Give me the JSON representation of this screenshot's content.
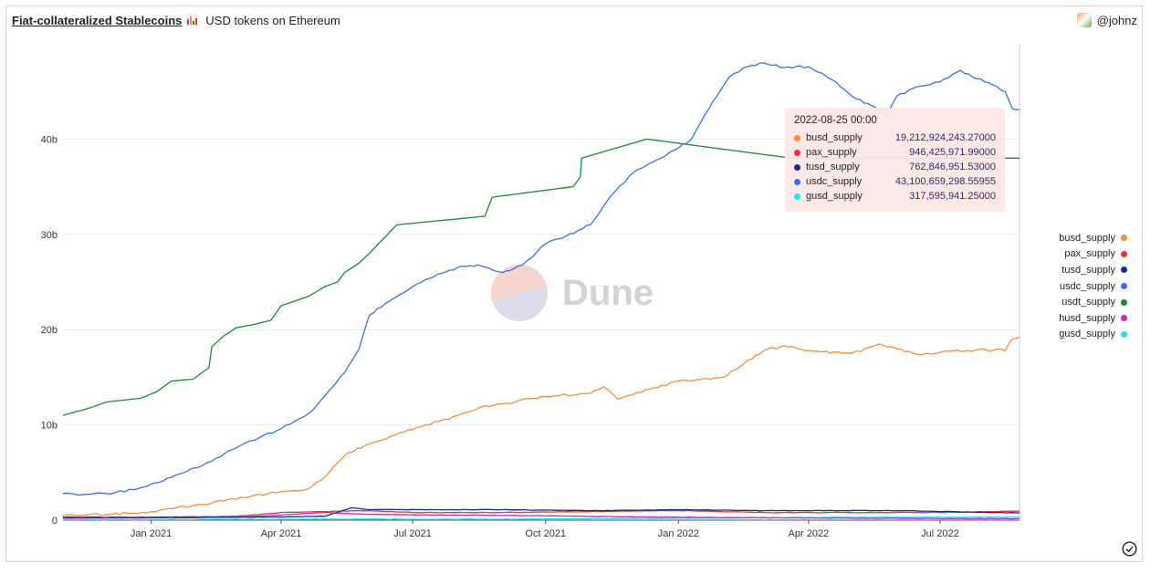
{
  "header": {
    "title": "Fiat-collateralized Stablecoins",
    "subtitle": "USD tokens on Ethereum",
    "user": "@johnz"
  },
  "watermark": {
    "text": "Dune"
  },
  "tooltip": {
    "date": "2022-08-25 00:00",
    "rows": [
      {
        "name": "busd_supply",
        "value": "19,212,924,243.27000",
        "color": "#f28e3d"
      },
      {
        "name": "pax_supply",
        "value": "946,425,971.99000",
        "color": "#e8323c"
      },
      {
        "name": "tusd_supply",
        "value": "762,846,951.53000",
        "color": "#1c2a8a"
      },
      {
        "name": "usdc_supply",
        "value": "43,100,659,298.55955",
        "color": "#3d6ee8"
      },
      {
        "name": "gusd_supply",
        "value": "317,595,941.25000",
        "color": "#1ee6f0"
      }
    ]
  },
  "chart_data": {
    "type": "line",
    "x_range": [
      "2020-11-01",
      "2022-08-25"
    ],
    "ylim": [
      0,
      50
    ],
    "y_ticks": [
      0,
      10,
      20,
      30,
      40
    ],
    "y_tick_labels": [
      "0",
      "10b",
      "20b",
      "30b",
      "40b"
    ],
    "x_ticks": [
      "2021-01-01",
      "2021-04-01",
      "2021-07-01",
      "2021-10-01",
      "2022-01-01",
      "2022-04-01",
      "2022-07-01"
    ],
    "x_tick_labels": [
      "Jan 2021",
      "Apr 2021",
      "Jul 2021",
      "Oct 2021",
      "Jan 2022",
      "Apr 2022",
      "Jul 2022"
    ],
    "legend_position": "right",
    "crosshair_x": "2022-08-25",
    "series": [
      {
        "name": "busd_supply",
        "color": "#f28e3d",
        "points": [
          [
            "2020-11-01",
            0.5
          ],
          [
            "2020-12-01",
            0.6
          ],
          [
            "2021-01-01",
            0.9
          ],
          [
            "2021-02-01",
            1.6
          ],
          [
            "2021-03-01",
            2.2
          ],
          [
            "2021-04-01",
            3.0
          ],
          [
            "2021-04-20",
            3.3
          ],
          [
            "2021-05-01",
            4.5
          ],
          [
            "2021-05-15",
            6.8
          ],
          [
            "2021-06-01",
            8.0
          ],
          [
            "2021-07-01",
            9.5
          ],
          [
            "2021-08-01",
            11.0
          ],
          [
            "2021-08-20",
            12.0
          ],
          [
            "2021-09-01",
            12.2
          ],
          [
            "2021-10-01",
            13.0
          ],
          [
            "2021-11-01",
            13.3
          ],
          [
            "2021-11-10",
            14.0
          ],
          [
            "2021-11-20",
            12.7
          ],
          [
            "2021-12-01",
            13.2
          ],
          [
            "2021-12-15",
            13.9
          ],
          [
            "2022-01-01",
            14.6
          ],
          [
            "2022-02-01",
            15.0
          ],
          [
            "2022-02-15",
            16.4
          ],
          [
            "2022-03-01",
            17.8
          ],
          [
            "2022-03-15",
            18.3
          ],
          [
            "2022-04-01",
            17.8
          ],
          [
            "2022-05-01",
            17.5
          ],
          [
            "2022-05-20",
            18.5
          ],
          [
            "2022-06-01",
            18.0
          ],
          [
            "2022-06-15",
            17.4
          ],
          [
            "2022-07-01",
            17.6
          ],
          [
            "2022-08-01",
            17.9
          ],
          [
            "2022-08-15",
            17.8
          ],
          [
            "2022-08-20",
            19.0
          ],
          [
            "2022-08-25",
            19.21
          ]
        ]
      },
      {
        "name": "pax_supply",
        "color": "#e8323c",
        "points": [
          [
            "2020-11-01",
            0.3
          ],
          [
            "2021-01-01",
            0.3
          ],
          [
            "2021-03-01",
            0.4
          ],
          [
            "2021-04-01",
            0.8
          ],
          [
            "2021-05-01",
            0.9
          ],
          [
            "2021-06-01",
            1.0
          ],
          [
            "2021-07-01",
            0.8
          ],
          [
            "2021-09-01",
            0.8
          ],
          [
            "2021-11-01",
            0.9
          ],
          [
            "2022-01-01",
            1.0
          ],
          [
            "2022-03-01",
            0.8
          ],
          [
            "2022-05-01",
            0.8
          ],
          [
            "2022-07-01",
            0.8
          ],
          [
            "2022-08-25",
            0.95
          ]
        ]
      },
      {
        "name": "tusd_supply",
        "color": "#1c2a8a",
        "points": [
          [
            "2020-11-01",
            0.3
          ],
          [
            "2021-01-01",
            0.3
          ],
          [
            "2021-03-01",
            0.3
          ],
          [
            "2021-05-01",
            0.4
          ],
          [
            "2021-05-20",
            1.3
          ],
          [
            "2021-06-01",
            1.1
          ],
          [
            "2021-09-01",
            1.1
          ],
          [
            "2021-11-01",
            1.0
          ],
          [
            "2022-01-01",
            1.1
          ],
          [
            "2022-03-01",
            1.0
          ],
          [
            "2022-06-01",
            1.0
          ],
          [
            "2022-08-25",
            0.76
          ]
        ]
      },
      {
        "name": "usdc_supply",
        "color": "#3d6ee8",
        "points": [
          [
            "2020-11-01",
            2.8
          ],
          [
            "2020-11-15",
            2.7
          ],
          [
            "2020-12-01",
            2.8
          ],
          [
            "2020-12-20",
            3.2
          ],
          [
            "2021-01-01",
            3.8
          ],
          [
            "2021-01-15",
            4.5
          ],
          [
            "2021-02-01",
            5.5
          ],
          [
            "2021-02-15",
            6.5
          ],
          [
            "2021-03-01",
            7.6
          ],
          [
            "2021-04-01",
            9.6
          ],
          [
            "2021-04-20",
            11.2
          ],
          [
            "2021-05-01",
            13.0
          ],
          [
            "2021-05-15",
            15.5
          ],
          [
            "2021-05-25",
            18.0
          ],
          [
            "2021-06-01",
            21.5
          ],
          [
            "2021-06-15",
            23.0
          ],
          [
            "2021-07-01",
            24.5
          ],
          [
            "2021-07-15",
            25.5
          ],
          [
            "2021-08-01",
            26.5
          ],
          [
            "2021-08-15",
            26.8
          ],
          [
            "2021-09-01",
            26.0
          ],
          [
            "2021-09-15",
            26.8
          ],
          [
            "2021-10-01",
            29.0
          ],
          [
            "2021-10-15",
            29.8
          ],
          [
            "2021-11-01",
            31.0
          ],
          [
            "2021-11-15",
            34.0
          ],
          [
            "2021-12-01",
            36.5
          ],
          [
            "2021-12-20",
            38.0
          ],
          [
            "2022-01-10",
            40.0
          ],
          [
            "2022-01-25",
            44.0
          ],
          [
            "2022-02-05",
            46.5
          ],
          [
            "2022-02-15",
            47.5
          ],
          [
            "2022-03-01",
            48.0
          ],
          [
            "2022-03-15",
            47.5
          ],
          [
            "2022-04-01",
            47.6
          ],
          [
            "2022-04-20",
            46.0
          ],
          [
            "2022-05-01",
            44.5
          ],
          [
            "2022-05-15",
            43.5
          ],
          [
            "2022-05-25",
            42.5
          ],
          [
            "2022-06-01",
            44.5
          ],
          [
            "2022-06-15",
            45.5
          ],
          [
            "2022-07-01",
            46.0
          ],
          [
            "2022-07-15",
            47.2
          ],
          [
            "2022-08-01",
            46.0
          ],
          [
            "2022-08-15",
            45.0
          ],
          [
            "2022-08-20",
            43.2
          ],
          [
            "2022-08-25",
            43.1
          ]
        ]
      },
      {
        "name": "usdt_supply",
        "color": "#1a8a3a",
        "points": [
          [
            "2020-11-01",
            11.0
          ],
          [
            "2020-11-20",
            11.8
          ],
          [
            "2020-12-01",
            12.4
          ],
          [
            "2020-12-25",
            12.8
          ],
          [
            "2021-01-05",
            13.5
          ],
          [
            "2021-01-15",
            14.6
          ],
          [
            "2021-01-30",
            14.8
          ],
          [
            "2021-02-10",
            16.0
          ],
          [
            "2021-02-12",
            18.2
          ],
          [
            "2021-02-20",
            19.3
          ],
          [
            "2021-03-01",
            20.2
          ],
          [
            "2021-03-15",
            20.6
          ],
          [
            "2021-03-25",
            21.0
          ],
          [
            "2021-04-01",
            22.5
          ],
          [
            "2021-04-20",
            23.5
          ],
          [
            "2021-05-01",
            24.5
          ],
          [
            "2021-05-10",
            25.0
          ],
          [
            "2021-05-15",
            26.0
          ],
          [
            "2021-05-25",
            27.0
          ],
          [
            "2021-06-01",
            28.0
          ],
          [
            "2021-06-20",
            31.0
          ],
          [
            "2021-08-20",
            31.9
          ],
          [
            "2021-08-25",
            33.9
          ],
          [
            "2021-10-20",
            35.0
          ],
          [
            "2021-10-25",
            36.0
          ],
          [
            "2021-10-26",
            38.0
          ],
          [
            "2021-12-10",
            40.0
          ],
          [
            "2022-03-20",
            38.0
          ],
          [
            "2022-08-25",
            38.0
          ]
        ]
      },
      {
        "name": "husd_supply",
        "color": "#d020d8",
        "points": [
          [
            "2020-11-01",
            0.2
          ],
          [
            "2021-03-01",
            0.3
          ],
          [
            "2021-05-01",
            0.8
          ],
          [
            "2021-06-01",
            0.6
          ],
          [
            "2021-09-01",
            0.5
          ],
          [
            "2022-01-01",
            0.3
          ],
          [
            "2022-05-01",
            0.2
          ],
          [
            "2022-08-25",
            0.15
          ]
        ]
      },
      {
        "name": "gusd_supply",
        "color": "#1ee6f0",
        "points": [
          [
            "2020-11-01",
            0.05
          ],
          [
            "2021-04-01",
            0.1
          ],
          [
            "2021-09-01",
            0.1
          ],
          [
            "2022-01-01",
            0.2
          ],
          [
            "2022-05-01",
            0.3
          ],
          [
            "2022-08-25",
            0.32
          ]
        ]
      }
    ]
  }
}
